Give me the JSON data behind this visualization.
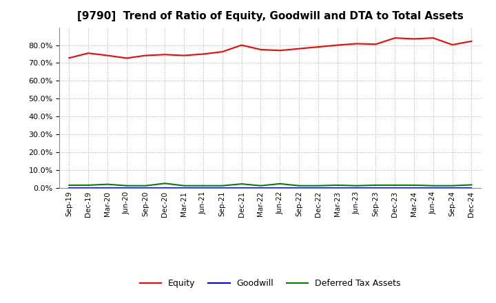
{
  "title": "[9790]  Trend of Ratio of Equity, Goodwill and DTA to Total Assets",
  "x_labels": [
    "Sep-19",
    "Dec-19",
    "Mar-20",
    "Jun-20",
    "Sep-20",
    "Dec-20",
    "Mar-21",
    "Jun-21",
    "Sep-21",
    "Dec-21",
    "Mar-22",
    "Jun-22",
    "Sep-22",
    "Dec-22",
    "Mar-23",
    "Jun-23",
    "Sep-23",
    "Dec-23",
    "Mar-24",
    "Jun-24",
    "Sep-24",
    "Dec-24"
  ],
  "equity": [
    0.728,
    0.755,
    0.742,
    0.727,
    0.742,
    0.747,
    0.742,
    0.75,
    0.763,
    0.8,
    0.775,
    0.77,
    0.78,
    0.79,
    0.8,
    0.808,
    0.805,
    0.84,
    0.835,
    0.84,
    0.802,
    0.822
  ],
  "goodwill": [
    0.0,
    0.0,
    0.0,
    0.0,
    0.0,
    0.0,
    0.0,
    0.0,
    0.0,
    0.0,
    0.0,
    0.0,
    0.0,
    0.0,
    0.0,
    0.0,
    0.0,
    0.0,
    0.0,
    0.0,
    0.0,
    0.0
  ],
  "dta": [
    0.015,
    0.015,
    0.02,
    0.012,
    0.012,
    0.025,
    0.012,
    0.012,
    0.012,
    0.022,
    0.012,
    0.023,
    0.012,
    0.012,
    0.015,
    0.012,
    0.015,
    0.015,
    0.015,
    0.012,
    0.012,
    0.017
  ],
  "equity_color": "#ff0000",
  "goodwill_color": "#0000ff",
  "dta_color": "#008000",
  "bg_color": "#ffffff",
  "plot_bg_color": "#ffffff",
  "grid_color": "#aaaaaa",
  "ylim": [
    0.0,
    0.9
  ],
  "yticks": [
    0.0,
    0.1,
    0.2,
    0.3,
    0.4,
    0.5,
    0.6,
    0.7,
    0.8
  ],
  "legend_labels": [
    "Equity",
    "Goodwill",
    "Deferred Tax Assets"
  ],
  "title_fontsize": 11,
  "tick_fontsize": 8,
  "xlabel_fontsize": 7.5
}
